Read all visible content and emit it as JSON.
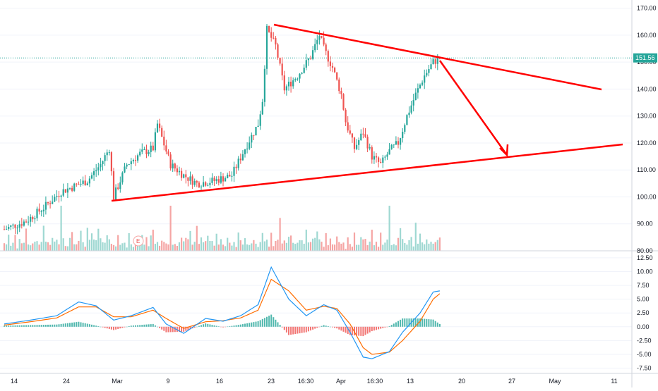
{
  "colors": {
    "up": "#26a69a",
    "down": "#ef5350",
    "vol_up": "#9fd8d2",
    "vol_down": "#f5a5a4",
    "macd_line": "#2196f3",
    "signal_line": "#ff6d00",
    "hist_up": "#26a69a",
    "hist_down": "#ef5350",
    "drawing": "#ff0000",
    "price_line": "#26a69a"
  },
  "chart_data": [
    {
      "type": "candlestick",
      "price_axis": {
        "ylim": [
          80,
          172
        ],
        "ticks": [
          "170.00",
          "160.00",
          "150.00",
          "140.00",
          "130.00",
          "120.00",
          "110.00",
          "100.00",
          "90.00",
          "80.00"
        ]
      },
      "last_price_label": "151.56",
      "earnings_marker": "E",
      "time_axis": {
        "labels": [
          "14",
          "24",
          "Mar",
          "9",
          "16",
          "23",
          "16:30",
          "Apr",
          "16:30",
          "13",
          "20",
          "27",
          "May",
          "11"
        ]
      },
      "anchors": [
        {
          "x": 0,
          "y": 88
        },
        {
          "x": 10,
          "y": 91
        },
        {
          "x": 18,
          "y": 96
        },
        {
          "x": 26,
          "y": 102
        },
        {
          "x": 32,
          "y": 104
        },
        {
          "x": 38,
          "y": 106
        },
        {
          "x": 44,
          "y": 112
        },
        {
          "x": 48,
          "y": 118
        },
        {
          "x": 50,
          "y": 100
        },
        {
          "x": 56,
          "y": 112
        },
        {
          "x": 62,
          "y": 116
        },
        {
          "x": 68,
          "y": 118
        },
        {
          "x": 70,
          "y": 127
        },
        {
          "x": 76,
          "y": 112
        },
        {
          "x": 82,
          "y": 108
        },
        {
          "x": 88,
          "y": 105
        },
        {
          "x": 96,
          "y": 106
        },
        {
          "x": 104,
          "y": 108
        },
        {
          "x": 110,
          "y": 118
        },
        {
          "x": 116,
          "y": 127
        },
        {
          "x": 118,
          "y": 136
        },
        {
          "x": 120,
          "y": 162
        },
        {
          "x": 124,
          "y": 156
        },
        {
          "x": 128,
          "y": 140
        },
        {
          "x": 134,
          "y": 145
        },
        {
          "x": 140,
          "y": 152
        },
        {
          "x": 144,
          "y": 160
        },
        {
          "x": 146,
          "y": 155
        },
        {
          "x": 150,
          "y": 148
        },
        {
          "x": 154,
          "y": 138
        },
        {
          "x": 156,
          "y": 128
        },
        {
          "x": 160,
          "y": 118
        },
        {
          "x": 164,
          "y": 124
        },
        {
          "x": 168,
          "y": 115
        },
        {
          "x": 172,
          "y": 112
        },
        {
          "x": 176,
          "y": 117
        },
        {
          "x": 180,
          "y": 120
        },
        {
          "x": 184,
          "y": 130
        },
        {
          "x": 188,
          "y": 138
        },
        {
          "x": 192,
          "y": 145
        },
        {
          "x": 196,
          "y": 150
        },
        {
          "x": 199,
          "y": 151.5
        }
      ],
      "volumes": [
        6,
        3,
        8,
        4,
        5,
        7,
        2,
        9,
        6,
        4,
        10,
        5,
        3,
        7,
        5,
        6,
        4,
        8,
        11,
        5,
        6,
        3,
        9,
        4,
        7,
        5,
        24,
        6,
        5,
        4,
        8,
        14,
        7,
        6,
        5,
        9,
        6,
        4,
        13,
        5,
        8,
        6,
        7,
        10,
        6,
        5,
        4,
        8,
        5,
        6
      ],
      "macd": {
        "ylim": [
          -8.2,
          13
        ],
        "ticks": [
          "12.50",
          "10.00",
          "7.50",
          "5.00",
          "2.50",
          "0.00",
          "-2.50",
          "-5.00",
          "-7.50"
        ],
        "macd_anchors": [
          {
            "x": 0,
            "y": 0.5
          },
          {
            "x": 12,
            "y": 1.2
          },
          {
            "x": 24,
            "y": 2
          },
          {
            "x": 34,
            "y": 4.5
          },
          {
            "x": 42,
            "y": 3.8
          },
          {
            "x": 50,
            "y": 1.2
          },
          {
            "x": 58,
            "y": 2
          },
          {
            "x": 68,
            "y": 3.5
          },
          {
            "x": 74,
            "y": 0.5
          },
          {
            "x": 82,
            "y": -1.2
          },
          {
            "x": 92,
            "y": 1.5
          },
          {
            "x": 100,
            "y": 1
          },
          {
            "x": 108,
            "y": 2
          },
          {
            "x": 116,
            "y": 4
          },
          {
            "x": 122,
            "y": 10.8
          },
          {
            "x": 130,
            "y": 5
          },
          {
            "x": 138,
            "y": 2
          },
          {
            "x": 146,
            "y": 4
          },
          {
            "x": 152,
            "y": 3
          },
          {
            "x": 158,
            "y": -1
          },
          {
            "x": 164,
            "y": -5.5
          },
          {
            "x": 168,
            "y": -5.8
          },
          {
            "x": 176,
            "y": -4.5
          },
          {
            "x": 182,
            "y": -1
          },
          {
            "x": 190,
            "y": 2.5
          },
          {
            "x": 196,
            "y": 6.3
          },
          {
            "x": 199,
            "y": 6.5
          }
        ],
        "signal_anchors": [
          {
            "x": 0,
            "y": 0.3
          },
          {
            "x": 12,
            "y": 0.9
          },
          {
            "x": 24,
            "y": 1.6
          },
          {
            "x": 34,
            "y": 3.6
          },
          {
            "x": 42,
            "y": 3.6
          },
          {
            "x": 50,
            "y": 1.8
          },
          {
            "x": 58,
            "y": 1.8
          },
          {
            "x": 68,
            "y": 3
          },
          {
            "x": 74,
            "y": 1.5
          },
          {
            "x": 82,
            "y": -0.3
          },
          {
            "x": 92,
            "y": 0.9
          },
          {
            "x": 100,
            "y": 1.1
          },
          {
            "x": 108,
            "y": 1.6
          },
          {
            "x": 116,
            "y": 3
          },
          {
            "x": 122,
            "y": 8.6
          },
          {
            "x": 130,
            "y": 6.5
          },
          {
            "x": 138,
            "y": 3
          },
          {
            "x": 146,
            "y": 3.7
          },
          {
            "x": 152,
            "y": 3.3
          },
          {
            "x": 158,
            "y": 0.5
          },
          {
            "x": 164,
            "y": -3.8
          },
          {
            "x": 168,
            "y": -5
          },
          {
            "x": 176,
            "y": -4.6
          },
          {
            "x": 182,
            "y": -2.5
          },
          {
            "x": 190,
            "y": 1
          },
          {
            "x": 196,
            "y": 5
          },
          {
            "x": 199,
            "y": 6
          }
        ]
      }
    }
  ]
}
